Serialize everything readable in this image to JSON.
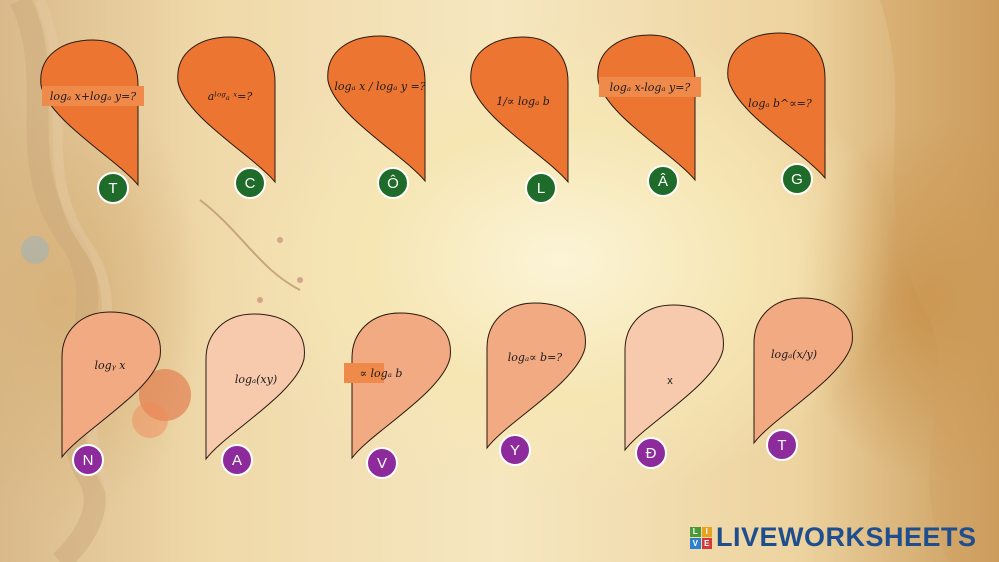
{
  "top_cards": [
    {
      "text": "logₐ x+logₐ y=?",
      "letter": "T",
      "shade": "dark"
    },
    {
      "text": "aˡᵒᵍₐ ˣ=?",
      "letter": "C",
      "shade": "dark"
    },
    {
      "text": "logₐ x / logₐ y =?",
      "letter": "Ô",
      "shade": "dark"
    },
    {
      "text": "1/∝ logₐ b",
      "letter": "L",
      "shade": "dark"
    },
    {
      "text": "logₐ x-logₐ y=?",
      "letter": "Â",
      "shade": "dark"
    },
    {
      "text": "logₐ b^∝=?",
      "letter": "G",
      "shade": "dark"
    }
  ],
  "bottom_cards": [
    {
      "text": "logᵧ x",
      "letter": "N",
      "shade": "mid"
    },
    {
      "text": "logₐ(xy)",
      "letter": "A",
      "shade": "light"
    },
    {
      "text": "∝ logₐ b",
      "letter": "V",
      "shade": "mid"
    },
    {
      "text": "logₐ∝ b=?",
      "letter": "Y",
      "shade": "mid"
    },
    {
      "text": "x",
      "letter": "Đ",
      "shade": "light"
    },
    {
      "text": "logₐ(x/y)",
      "letter": "T",
      "shade": "mid"
    }
  ],
  "brand": {
    "logo_letters": [
      "L",
      "I",
      "V",
      "E"
    ],
    "name": "LIVEWORKSHEETS"
  },
  "colors": {
    "card_dark": "#ec7532",
    "card_mid": "#f2aa82",
    "card_light": "#f7c9ad",
    "badge_green": "#1f6b2a",
    "badge_purple": "#8e2b9c",
    "brand_blue": "#1f4e8f"
  }
}
